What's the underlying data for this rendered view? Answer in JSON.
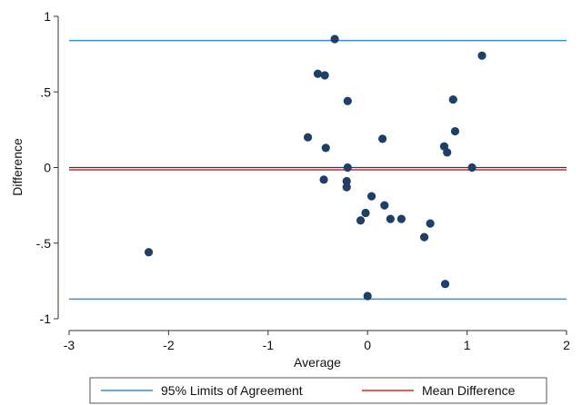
{
  "chart_data": {
    "type": "scatter",
    "title": "",
    "xlabel": "Average",
    "ylabel": "Difference",
    "xlim": [
      -3,
      2
    ],
    "ylim": [
      -1,
      1
    ],
    "x_ticks": [
      -3,
      -2,
      -1,
      0,
      1,
      2
    ],
    "x_tick_labels": [
      "-3",
      "-2",
      "-1",
      "0",
      "1",
      "2"
    ],
    "y_ticks": [
      1,
      0.5,
      0,
      -0.5,
      -1
    ],
    "y_tick_labels": [
      "1",
      ".5",
      "0",
      "-.5",
      "-1"
    ],
    "grid": false,
    "legend_position": "bottom",
    "colors": {
      "points": "#1f3f66",
      "limits": "#3a8fd6",
      "mean": "#d62828",
      "zero": "#2c3e50"
    },
    "reference_lines": [
      {
        "name": "95% Limits of Agreement",
        "y": 0.84
      },
      {
        "name": "95% Limits of Agreement",
        "y": -0.87
      },
      {
        "name": "Mean Difference",
        "y": -0.015
      },
      {
        "name": "",
        "y": 0
      }
    ],
    "legend": [
      {
        "label": "95% Limits of Agreement",
        "color": "#3a8fd6"
      },
      {
        "label": "Mean Difference",
        "color": "#d62828"
      }
    ],
    "points": [
      {
        "x": -2.2,
        "y": -0.56
      },
      {
        "x": -0.6,
        "y": 0.2
      },
      {
        "x": -0.5,
        "y": 0.62
      },
      {
        "x": -0.43,
        "y": 0.61
      },
      {
        "x": -0.42,
        "y": 0.13
      },
      {
        "x": -0.44,
        "y": -0.08
      },
      {
        "x": -0.33,
        "y": 0.85
      },
      {
        "x": -0.2,
        "y": 0.44
      },
      {
        "x": -0.2,
        "y": 0.0
      },
      {
        "x": -0.21,
        "y": -0.09
      },
      {
        "x": -0.21,
        "y": -0.13
      },
      {
        "x": -0.07,
        "y": -0.35
      },
      {
        "x": -0.02,
        "y": -0.3
      },
      {
        "x": 0.04,
        "y": -0.19
      },
      {
        "x": 0.15,
        "y": 0.19
      },
      {
        "x": 0.17,
        "y": -0.25
      },
      {
        "x": 0.23,
        "y": -0.34
      },
      {
        "x": 0.34,
        "y": -0.34
      },
      {
        "x": 0.0,
        "y": -0.85
      },
      {
        "x": 0.57,
        "y": -0.46
      },
      {
        "x": 0.63,
        "y": -0.37
      },
      {
        "x": 0.77,
        "y": 0.14
      },
      {
        "x": 0.8,
        "y": 0.1
      },
      {
        "x": 0.78,
        "y": -0.77
      },
      {
        "x": 0.86,
        "y": 0.45
      },
      {
        "x": 0.88,
        "y": 0.24
      },
      {
        "x": 1.05,
        "y": 0.0
      },
      {
        "x": 1.15,
        "y": 0.74
      }
    ]
  }
}
